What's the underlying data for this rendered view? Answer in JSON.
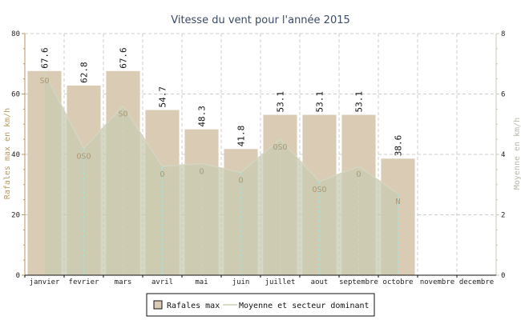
{
  "chart_data": {
    "type": "bar",
    "title": "Vitesse du vent pour l'année 2015",
    "categories": [
      "janvier",
      "fevrier",
      "mars",
      "avril",
      "mai",
      "juin",
      "juillet",
      "aout",
      "septembre",
      "octobre",
      "novembre",
      "decembre"
    ],
    "ylabel_left": "Rafales max en km/h",
    "ylabel_right": "Moyenne en km/h",
    "ylim_left": [
      0,
      80
    ],
    "yticks_left": [
      0,
      20,
      40,
      60,
      80
    ],
    "ylim_right": [
      0,
      8
    ],
    "yticks_right": [
      0,
      2,
      4,
      6,
      8
    ],
    "grid": true,
    "series": [
      {
        "name": "Rafales max",
        "type": "bar",
        "axis": "left",
        "color": "#d9cbb4",
        "values": [
          67.6,
          62.8,
          67.6,
          54.7,
          48.3,
          41.8,
          53.1,
          53.1,
          53.1,
          38.6,
          null,
          null
        ]
      },
      {
        "name": "Moyenne et secteur dominant",
        "type": "area",
        "axis": "right",
        "color": "#c8cbb2",
        "values": [
          6.7,
          4.2,
          5.6,
          3.6,
          3.7,
          3.4,
          4.5,
          3.1,
          3.6,
          2.7,
          null,
          null
        ],
        "sectors": [
          "SO",
          "OSO",
          "SO",
          "O",
          "O",
          "O",
          "OSO",
          "OSO",
          "O",
          "N",
          null,
          null
        ]
      }
    ],
    "legend": {
      "placement": "bottom",
      "items": [
        "Rafales max",
        "Moyenne et secteur dominant"
      ]
    }
  }
}
